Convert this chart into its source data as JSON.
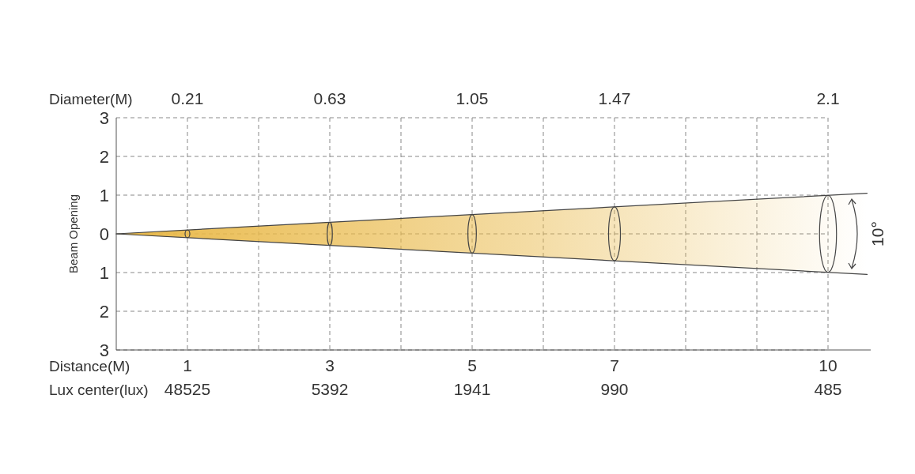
{
  "chart_data": {
    "type": "line",
    "ylabel": "Beam Opening",
    "xlabel": "Distance(M)",
    "x2label": "Diameter(M)",
    "x": [
      0,
      10.55
    ],
    "series": [
      {
        "type": "line",
        "values": [
          0,
          1.05
        ],
        "color": "#444444"
      },
      {
        "type": "line",
        "values": [
          0,
          -1.05
        ],
        "color": "#444444"
      }
    ],
    "xlim": [
      0,
      10.6
    ],
    "xticks": [
      1,
      {
        "value": 2,
        "label": null
      },
      3,
      {
        "value": 4,
        "label": null
      },
      5,
      {
        "value": 6,
        "label": null
      },
      7,
      {
        "value": 8,
        "label": null
      },
      {
        "value": 9,
        "label": null
      },
      10
    ],
    "x2lim": [
      0,
      2.226
    ],
    "x2ticks": [
      0.21,
      0.63,
      1.05,
      1.47,
      2.1
    ],
    "ylim": [
      -3,
      3
    ],
    "yticks": [
      {
        "value": -3,
        "label": "3"
      },
      {
        "value": -2,
        "label": "2"
      },
      {
        "value": -1,
        "label": "1"
      },
      0,
      1,
      2,
      3
    ],
    "grid": true,
    "annotations": [
      "Lux center(lux)",
      "48525",
      "5392",
      "1941",
      "990",
      "485",
      "10°"
    ]
  }
}
